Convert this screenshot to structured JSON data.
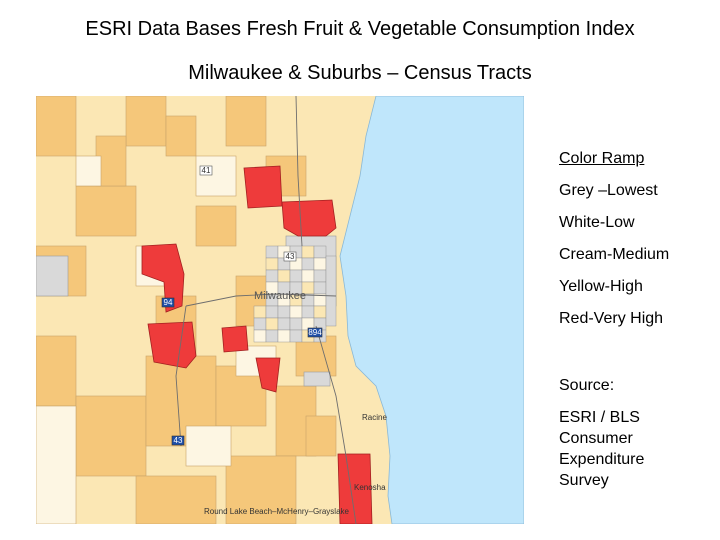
{
  "title": "ESRI Data Bases Fresh Fruit & Vegetable Consumption Index",
  "subtitle": "Milwaukee & Suburbs – Census Tracts",
  "legend": {
    "header": "Color Ramp",
    "items": [
      {
        "label": "Grey –Lowest",
        "color": "#d9d9d9"
      },
      {
        "label": "White-Low",
        "color": "#fdf6e3"
      },
      {
        "label": "Cream-Medium",
        "color": "#fbe7b4"
      },
      {
        "label": "Yellow-High",
        "color": "#f5c77a"
      },
      {
        "label": "Red-Very High",
        "color": "#ee3b3b"
      }
    ]
  },
  "source": {
    "label": "Source:",
    "text": "ESRI / BLS Consumer Expenditure Survey"
  },
  "map": {
    "labels": {
      "milwaukee": "Milwaukee",
      "racine": "Racine",
      "kenosha": "Kenosha",
      "round_lake": "Round Lake Beach–McHenry–Grayslake"
    },
    "shields": [
      "41",
      "43",
      "94",
      "894",
      "43"
    ],
    "water_color": "#bfe6fb"
  }
}
